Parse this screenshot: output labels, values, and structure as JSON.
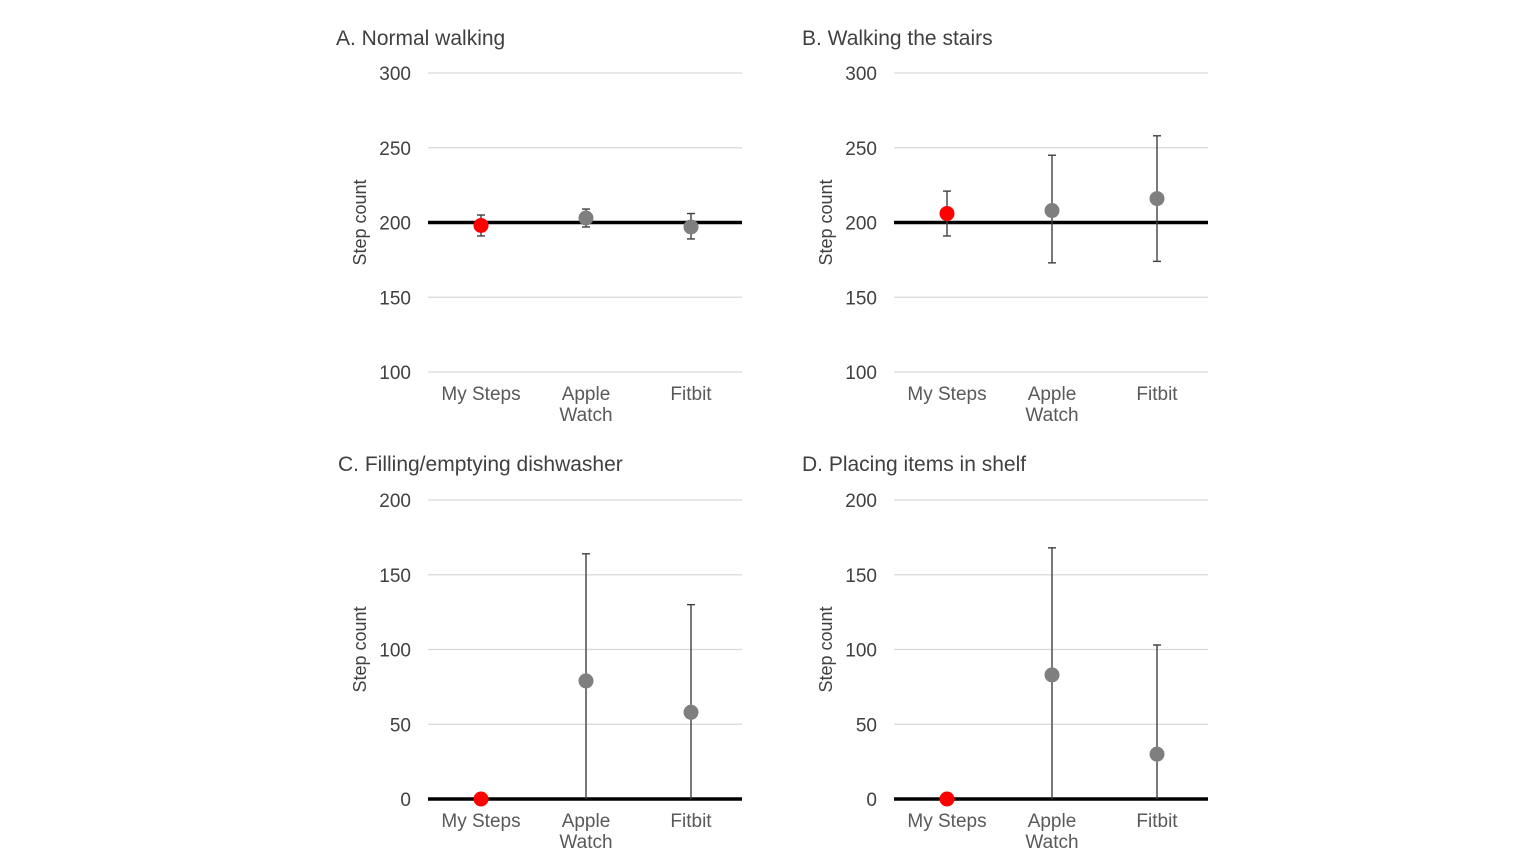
{
  "chart_data": [
    {
      "type": "scatter",
      "title": "A. Normal walking",
      "ylabel": "Step count",
      "ylim": [
        100,
        300
      ],
      "yticks": [
        100,
        150,
        200,
        250,
        300
      ],
      "reference_line": 200,
      "grid": true,
      "categories": [
        "My Steps",
        "Apple Watch",
        "Fitbit"
      ],
      "category_lines": [
        [
          "My Steps"
        ],
        [
          "Apple",
          "Watch"
        ],
        [
          "Fitbit"
        ]
      ],
      "values": [
        198,
        203,
        197
      ],
      "error_low": [
        191,
        197,
        189
      ],
      "error_high": [
        205,
        209,
        206
      ],
      "colors": [
        "#ff0000",
        "#7f7f7f",
        "#7f7f7f"
      ]
    },
    {
      "type": "scatter",
      "title": "B. Walking the stairs",
      "ylabel": "Step count",
      "ylim": [
        100,
        300
      ],
      "yticks": [
        100,
        150,
        200,
        250,
        300
      ],
      "reference_line": 200,
      "grid": true,
      "categories": [
        "My Steps",
        "Apple Watch",
        "Fitbit"
      ],
      "category_lines": [
        [
          "My Steps"
        ],
        [
          "Apple",
          "Watch"
        ],
        [
          "Fitbit"
        ]
      ],
      "values": [
        206,
        208,
        216
      ],
      "error_low": [
        191,
        173,
        174
      ],
      "error_high": [
        221,
        245,
        258
      ],
      "colors": [
        "#ff0000",
        "#7f7f7f",
        "#7f7f7f"
      ]
    },
    {
      "type": "scatter",
      "title": "C. Filling/emptying dishwasher",
      "ylabel": "Step count",
      "ylim": [
        0,
        200
      ],
      "yticks": [
        0,
        50,
        100,
        150,
        200
      ],
      "reference_line": 0,
      "grid": true,
      "categories": [
        "My Steps",
        "Apple Watch",
        "Fitbit"
      ],
      "category_lines": [
        [
          "My Steps"
        ],
        [
          "Apple",
          "Watch"
        ],
        [
          "Fitbit"
        ]
      ],
      "values": [
        0,
        79,
        58
      ],
      "error_low": [
        0,
        0,
        0
      ],
      "error_high": [
        0,
        164,
        130
      ],
      "colors": [
        "#ff0000",
        "#7f7f7f",
        "#7f7f7f"
      ]
    },
    {
      "type": "scatter",
      "title": "D. Placing items in shelf",
      "ylabel": "Step count",
      "ylim": [
        0,
        200
      ],
      "yticks": [
        0,
        50,
        100,
        150,
        200
      ],
      "reference_line": 0,
      "grid": true,
      "categories": [
        "My Steps",
        "Apple Watch",
        "Fitbit"
      ],
      "category_lines": [
        [
          "My Steps"
        ],
        [
          "Apple",
          "Watch"
        ],
        [
          "Fitbit"
        ]
      ],
      "values": [
        0,
        83,
        30
      ],
      "error_low": [
        0,
        0,
        0
      ],
      "error_high": [
        0,
        168,
        103
      ],
      "colors": [
        "#ff0000",
        "#7f7f7f",
        "#7f7f7f"
      ]
    }
  ]
}
